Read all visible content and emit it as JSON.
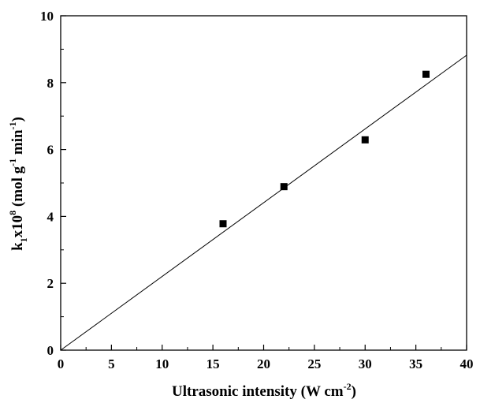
{
  "chart_data": {
    "type": "scatter",
    "title": "",
    "xlabel": {
      "main": "Ultrasonic intensity (W cm",
      "sup": "-2",
      "tail": ")"
    },
    "ylabel": {
      "p1": "k",
      "sub1": "1",
      "p2": "x10",
      "sup1": "8",
      "p3": " (mol g",
      "sup2": "-1",
      "p4": " min",
      "sup3": "-1",
      "p5": ")"
    },
    "xlim": [
      0,
      40
    ],
    "ylim": [
      0,
      10
    ],
    "xticks": [
      0,
      5,
      10,
      15,
      20,
      25,
      30,
      35,
      40
    ],
    "yticks": [
      0,
      2,
      4,
      6,
      8,
      10
    ],
    "x_minor_step": 2.5,
    "y_minor_step": 1,
    "grid": false,
    "series": [
      {
        "marker": "square",
        "color": "#000000",
        "points": [
          {
            "x": 16,
            "y": 3.78
          },
          {
            "x": 22,
            "y": 4.89
          },
          {
            "x": 30,
            "y": 6.29
          },
          {
            "x": 36,
            "y": 8.25
          }
        ]
      }
    ],
    "fit_line": {
      "color": "#000000",
      "from": {
        "x": 0,
        "y": 0
      },
      "to": {
        "x": 40,
        "y": 8.82
      }
    }
  }
}
